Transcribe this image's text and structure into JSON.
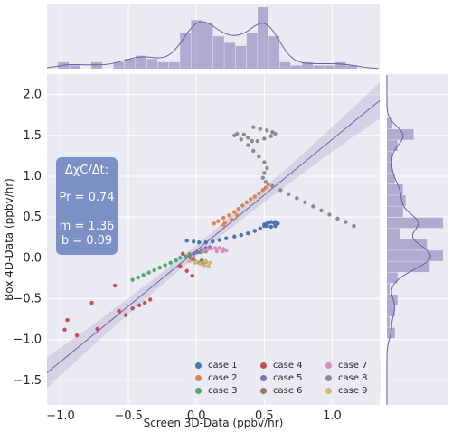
{
  "chart_data": {
    "type": "scatter",
    "xlabel": "Screen 3D-Data (ppbv/hr)",
    "ylabel": "Box 4D-Data (ppbv/hr)",
    "xlim": [
      -1.1,
      1.35
    ],
    "ylim": [
      -1.8,
      2.25
    ],
    "xticks": [
      -1.0,
      -0.5,
      0.0,
      0.5,
      1.0
    ],
    "xtick_labels": [
      "−1.0",
      "−0.5",
      "0.0",
      "0.5",
      "1.0"
    ],
    "yticks": [
      -1.5,
      -1.0,
      -0.5,
      0.0,
      0.5,
      1.0,
      1.5,
      2.0
    ],
    "ytick_labels": [
      "−1.5",
      "−1.0",
      "−0.5",
      "0.0",
      "0.5",
      "1.0",
      "1.5",
      "2.0"
    ],
    "grid": true,
    "legend_position": "lower-right",
    "regression": {
      "slope": 1.36,
      "intercept": 0.09
    },
    "annotation": {
      "title": "ΔχC/Δt:",
      "pr": "Pr = 0.74",
      "m": "m = 1.36",
      "b": "b = 0.09"
    },
    "series": [
      {
        "name": "case 1",
        "color": "#4c72b0",
        "points": [
          [
            -0.07,
            0.21
          ],
          [
            -0.02,
            0.2
          ],
          [
            0.02,
            0.19
          ],
          [
            0.07,
            0.19
          ],
          [
            0.12,
            0.2
          ],
          [
            0.17,
            0.22
          ],
          [
            0.22,
            0.24
          ],
          [
            0.28,
            0.26
          ],
          [
            0.33,
            0.28
          ],
          [
            0.38,
            0.3
          ],
          [
            0.43,
            0.33
          ],
          [
            0.47,
            0.36
          ],
          [
            0.5,
            0.39
          ],
          [
            0.52,
            0.42
          ],
          [
            0.55,
            0.44
          ],
          [
            0.58,
            0.44
          ],
          [
            0.6,
            0.42
          ],
          [
            0.58,
            0.39
          ],
          [
            0.55,
            0.38
          ],
          [
            0.52,
            0.39
          ],
          [
            0.5,
            0.41
          ],
          [
            0.53,
            0.43
          ],
          [
            0.57,
            0.43
          ]
        ]
      },
      {
        "name": "case 2",
        "color": "#dd8452",
        "points": [
          [
            0.13,
            0.42
          ],
          [
            0.16,
            0.45
          ],
          [
            0.2,
            0.49
          ],
          [
            0.24,
            0.52
          ],
          [
            0.28,
            0.56
          ],
          [
            0.31,
            0.6
          ],
          [
            0.34,
            0.64
          ],
          [
            0.37,
            0.68
          ],
          [
            0.4,
            0.72
          ],
          [
            0.43,
            0.75
          ],
          [
            0.46,
            0.79
          ],
          [
            0.49,
            0.83
          ],
          [
            0.51,
            0.86
          ],
          [
            0.53,
            0.9
          ],
          [
            0.21,
            0.43
          ],
          [
            0.26,
            0.47
          ],
          [
            0.3,
            0.52
          ],
          [
            0.2,
            0.4
          ],
          [
            -0.05,
            0.05
          ],
          [
            -0.02,
            0.0
          ]
        ]
      },
      {
        "name": "case 3",
        "color": "#55a868",
        "points": [
          [
            -0.47,
            -0.27
          ],
          [
            -0.43,
            -0.24
          ],
          [
            -0.39,
            -0.21
          ],
          [
            -0.35,
            -0.18
          ],
          [
            -0.31,
            -0.15
          ],
          [
            -0.27,
            -0.12
          ],
          [
            -0.23,
            -0.09
          ],
          [
            -0.19,
            -0.06
          ],
          [
            -0.15,
            -0.03
          ],
          [
            -0.12,
            0.0
          ],
          [
            -0.08,
            0.02
          ],
          [
            -0.05,
            0.04
          ],
          [
            -0.01,
            0.06
          ],
          [
            0.03,
            0.07
          ],
          [
            0.07,
            0.08
          ]
        ]
      },
      {
        "name": "case 4",
        "color": "#c44e52",
        "points": [
          [
            -0.97,
            -0.88
          ],
          [
            -0.95,
            -0.76
          ],
          [
            -0.88,
            -0.95
          ],
          [
            -0.77,
            -0.55
          ],
          [
            -0.73,
            -0.87
          ],
          [
            -0.6,
            -0.34
          ],
          [
            -0.57,
            -0.65
          ],
          [
            -0.52,
            -0.7
          ],
          [
            -0.47,
            -0.62
          ],
          [
            -0.42,
            -0.58
          ],
          [
            -0.38,
            -0.55
          ],
          [
            -0.34,
            -0.51
          ],
          [
            -0.12,
            -0.1
          ],
          [
            -0.07,
            -0.16
          ],
          [
            -0.03,
            -0.22
          ],
          [
            -0.1,
            0.05
          ]
        ]
      },
      {
        "name": "case 5",
        "color": "#8172b3",
        "points": [
          [
            -0.05,
            0.02
          ],
          [
            -0.02,
            0.05
          ],
          [
            0.01,
            0.07
          ],
          [
            0.04,
            0.1
          ],
          [
            0.07,
            0.12
          ],
          [
            0.1,
            0.13
          ]
        ]
      },
      {
        "name": "case 6",
        "color": "#937860",
        "points": [
          [
            -0.04,
            -0.02
          ],
          [
            -0.01,
            -0.04
          ],
          [
            0.02,
            -0.06
          ],
          [
            0.05,
            -0.08
          ],
          [
            0.07,
            -0.05
          ],
          [
            0.04,
            -0.03
          ]
        ]
      },
      {
        "name": "case 7",
        "color": "#da8bc3",
        "points": [
          [
            0.05,
            0.08
          ],
          [
            0.08,
            0.1
          ],
          [
            0.11,
            0.11
          ],
          [
            0.14,
            0.12
          ],
          [
            0.17,
            0.12
          ],
          [
            0.2,
            0.11
          ],
          [
            0.22,
            0.09
          ],
          [
            0.19,
            0.08
          ],
          [
            0.15,
            0.08
          ]
        ]
      },
      {
        "name": "case 8",
        "color": "#8c8c8c",
        "points": [
          [
            0.42,
            1.6
          ],
          [
            0.47,
            1.58
          ],
          [
            0.52,
            1.56
          ],
          [
            0.56,
            1.54
          ],
          [
            0.58,
            1.52
          ],
          [
            0.55,
            1.49
          ],
          [
            0.5,
            1.46
          ],
          [
            0.45,
            1.43
          ],
          [
            0.41,
            1.43
          ],
          [
            0.38,
            1.47
          ],
          [
            0.35,
            1.51
          ],
          [
            0.3,
            1.52
          ],
          [
            0.28,
            1.5
          ],
          [
            0.33,
            1.45
          ],
          [
            0.38,
            1.38
          ],
          [
            0.42,
            1.31
          ],
          [
            0.46,
            1.24
          ],
          [
            0.5,
            1.17
          ],
          [
            0.52,
            1.1
          ],
          [
            0.5,
            1.04
          ],
          [
            0.49,
            0.98
          ],
          [
            0.51,
            0.93
          ],
          [
            0.56,
            0.88
          ],
          [
            0.62,
            0.83
          ],
          [
            0.68,
            0.78
          ],
          [
            0.74,
            0.73
          ],
          [
            0.8,
            0.68
          ],
          [
            0.86,
            0.63
          ],
          [
            0.92,
            0.58
          ],
          [
            0.98,
            0.53
          ],
          [
            1.04,
            0.48
          ],
          [
            1.1,
            0.44
          ],
          [
            1.16,
            0.39
          ]
        ]
      },
      {
        "name": "case 9",
        "color": "#ccb974",
        "points": [
          [
            -0.05,
            -0.04
          ],
          [
            -0.01,
            -0.06
          ],
          [
            0.03,
            -0.07
          ],
          [
            0.06,
            -0.09
          ],
          [
            0.09,
            -0.1
          ],
          [
            0.1,
            -0.06
          ],
          [
            0.07,
            -0.04
          ],
          [
            0.0,
            -0.05
          ]
        ]
      }
    ]
  }
}
